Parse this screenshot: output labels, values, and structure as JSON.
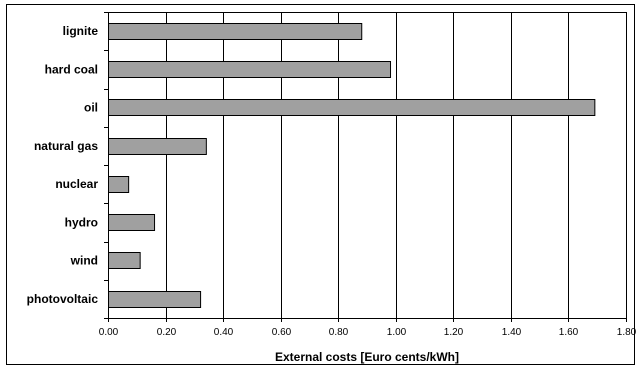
{
  "chart_data": {
    "type": "bar",
    "orientation": "horizontal",
    "title": "",
    "xlabel": "External costs [Euro cents/kWh]",
    "ylabel": "",
    "categories": [
      "lignite",
      "hard coal",
      "oil",
      "natural gas",
      "nuclear",
      "hydro",
      "wind",
      "photovoltaic"
    ],
    "values": [
      0.88,
      0.98,
      1.69,
      0.34,
      0.07,
      0.16,
      0.11,
      0.32
    ],
    "xlim": [
      0,
      1.8
    ],
    "xticks": [
      "0.00",
      "0.20",
      "0.40",
      "0.60",
      "0.80",
      "1.00",
      "1.20",
      "1.40",
      "1.60",
      "1.80"
    ],
    "grid": "vertical major gridlines",
    "legend": "none",
    "colors": {
      "bar_fill": "#a0a0a0",
      "bar_stroke": "#000000",
      "gridline": "#000000",
      "frame": "#000000"
    }
  }
}
